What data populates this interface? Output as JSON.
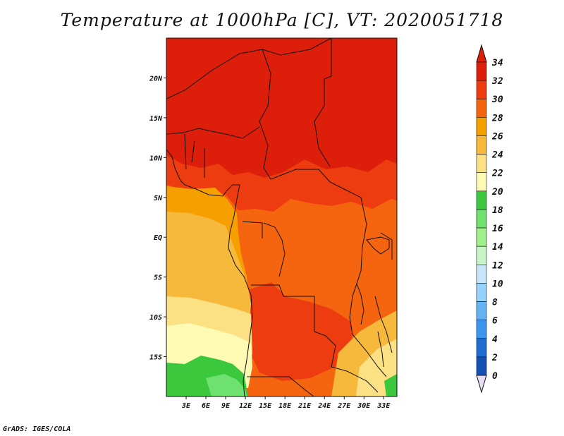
{
  "title": "Temperature at 1000hPa [C], VT: 2020051718",
  "credit": "GrADS: IGES/COLA",
  "map": {
    "lon_range": [
      0,
      35
    ],
    "lat_range": [
      -20,
      25
    ],
    "lat_ticks": [
      {
        "value": 20,
        "label": "20N"
      },
      {
        "value": 15,
        "label": "15N"
      },
      {
        "value": 10,
        "label": "10N"
      },
      {
        "value": 5,
        "label": "5N"
      },
      {
        "value": 0,
        "label": "EQ"
      },
      {
        "value": -5,
        "label": "5S"
      },
      {
        "value": -10,
        "label": "10S"
      },
      {
        "value": -15,
        "label": "15S"
      }
    ],
    "lon_ticks": [
      {
        "value": 3,
        "label": "3E"
      },
      {
        "value": 6,
        "label": "6E"
      },
      {
        "value": 9,
        "label": "9E"
      },
      {
        "value": 12,
        "label": "12E"
      },
      {
        "value": 15,
        "label": "15E"
      },
      {
        "value": 18,
        "label": "18E"
      },
      {
        "value": 21,
        "label": "21E"
      },
      {
        "value": 24,
        "label": "24E"
      },
      {
        "value": 27,
        "label": "27E"
      },
      {
        "value": 30,
        "label": "30E"
      },
      {
        "value": 33,
        "label": "33E"
      }
    ]
  },
  "colorbar": {
    "labels": [
      "34",
      "32",
      "30",
      "28",
      "26",
      "24",
      "22",
      "20",
      "18",
      "16",
      "14",
      "12",
      "10",
      "8",
      "6",
      "4",
      "2",
      "0"
    ],
    "colors": [
      "#dc1e0a",
      "#ed3c0f",
      "#f5640f",
      "#f5a000",
      "#f7b93c",
      "#fbe183",
      "#fdfab4",
      "#3cc83c",
      "#6ee16e",
      "#a0f08c",
      "#c8f5c8",
      "#c8e6fa",
      "#96d2fa",
      "#64b4f5",
      "#3c96f0",
      "#1e6ed2",
      "#1450b4",
      "#0a1e78"
    ],
    "end_colors": {
      "top": "#dc1e0a",
      "bottom": "#e6dcf5"
    }
  }
}
